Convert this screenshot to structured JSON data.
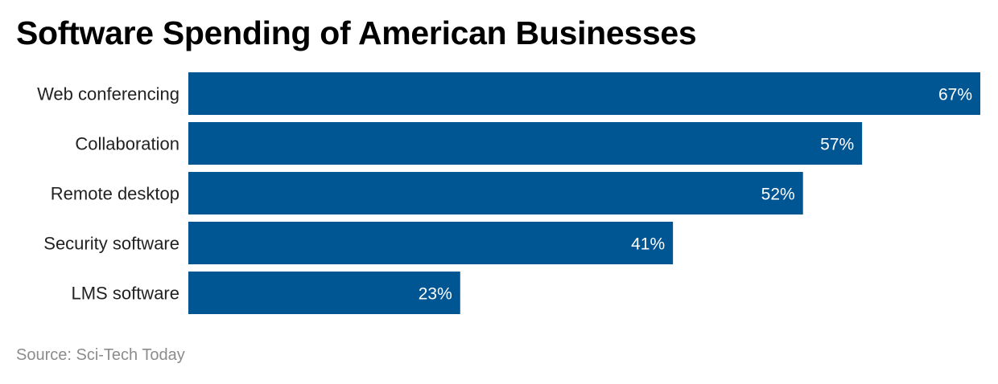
{
  "title": "Software Spending of American Businesses",
  "source": "Source: Sci-Tech Today",
  "colors": {
    "bar": "#005593",
    "value_label": "#ffffff",
    "category_label": "#222222",
    "source": "#8c8c8c"
  },
  "chart_data": {
    "type": "bar",
    "orientation": "horizontal",
    "categories": [
      "Web conferencing",
      "Collaboration",
      "Remote desktop",
      "Security software",
      "LMS software"
    ],
    "values": [
      67,
      57,
      52,
      41,
      23
    ],
    "value_labels": [
      "67%",
      "57%",
      "52%",
      "41%",
      "23%"
    ],
    "title": "Software Spending of American Businesses",
    "xlabel": "",
    "ylabel": "",
    "xlim": [
      0,
      67
    ],
    "grid": false,
    "legend": "none"
  }
}
